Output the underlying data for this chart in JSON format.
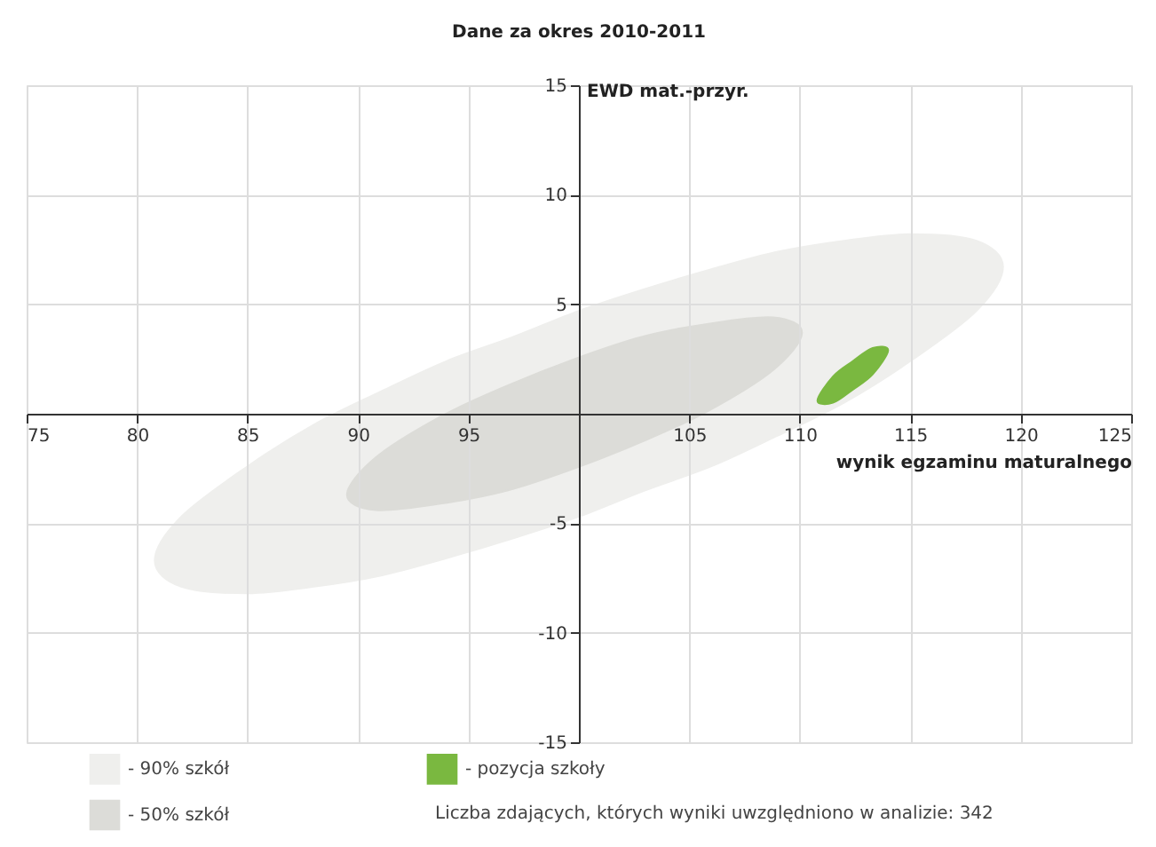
{
  "chart_data": {
    "type": "area",
    "title": "Dane za okres 2010-2011",
    "xlabel": "wynik egzaminu maturalnego",
    "ylabel": "EWD mat.-przyr.",
    "xlim": [
      75,
      125
    ],
    "ylim": [
      -15,
      15
    ],
    "xticks": [
      75,
      80,
      85,
      90,
      95,
      {
        "value": 100,
        "label": null
      },
      105,
      110,
      115,
      120,
      125
    ],
    "yticks": [
      -15,
      -10,
      -5,
      {
        "value": 0,
        "label": null
      },
      5,
      10,
      15
    ],
    "grid": true,
    "legend": "bottom left",
    "series": [
      {
        "name": "- 90% szkół",
        "color": "#efefed",
        "x": [
          80.8,
          82,
          85,
          88,
          91,
          94,
          97,
          100,
          103,
          106,
          109,
          112,
          115,
          118,
          119.2,
          118,
          115,
          112,
          109,
          106,
          103,
          100,
          97,
          94,
          91,
          88,
          85,
          82
        ],
        "values": [
          -6.7,
          -4.7,
          -2.4,
          -0.5,
          1.0,
          2.4,
          3.5,
          4.7,
          5.7,
          6.6,
          7.4,
          7.9,
          8.2,
          7.9,
          6.7,
          4.7,
          2.4,
          0.5,
          -1.0,
          -2.4,
          -3.5,
          -4.7,
          -5.7,
          -6.6,
          -7.4,
          -7.9,
          -8.2,
          -7.9
        ]
      },
      {
        "name": "- 50% szkół",
        "color": "#dcdcd8",
        "x": [
          89.5,
          90.8,
          93.8,
          96.8,
          99.8,
          102.8,
          105.8,
          108.8,
          110.1,
          108.8,
          105.8,
          102.8,
          99.8,
          96.8,
          93.8,
          90.8
        ],
        "values": [
          -3.7,
          -2.0,
          -0.1,
          1.3,
          2.5,
          3.5,
          4.1,
          4.4,
          3.7,
          2.0,
          0.1,
          -1.3,
          -2.5,
          -3.5,
          -4.1,
          -4.4
        ]
      },
      {
        "name": "- pozycja szkoły",
        "color": "#7ab840",
        "x": [
          110.8,
          111.5,
          112.4,
          113.3,
          114.0,
          113.3,
          112.4,
          111.5
        ],
        "values": [
          0.6,
          1.7,
          2.4,
          3.0,
          2.9,
          1.8,
          1.1,
          0.5
        ]
      }
    ],
    "annotations": [
      "Liczba zdających, których wyniki uwzględniono w analizie: 342"
    ]
  }
}
